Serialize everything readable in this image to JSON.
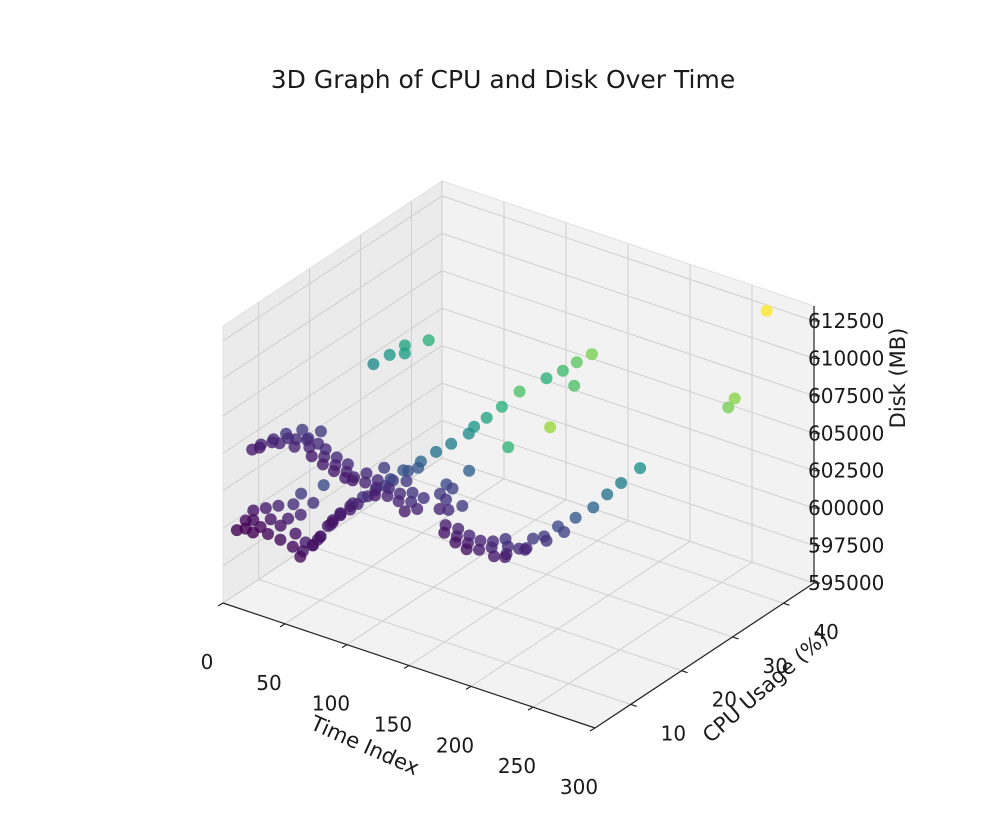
{
  "chart_data": {
    "type": "scatter",
    "projection": "3d",
    "title": "3D Graph of CPU and Disk Over Time",
    "xlabel": "Time Index",
    "ylabel": "CPU Usage (%)",
    "zlabel": "Disk (MB)",
    "xlim": [
      0,
      300
    ],
    "ylim": [
      3,
      46
    ],
    "zlim": [
      595000,
      613500
    ],
    "xticks": [
      0,
      50,
      100,
      150,
      200,
      250,
      300
    ],
    "yticks": [
      10,
      20,
      30,
      40
    ],
    "zticks": [
      595000,
      597500,
      600000,
      602500,
      605000,
      607500,
      610000,
      612500
    ],
    "colormap": "viridis",
    "color_by": "CPU Usage (%)",
    "grid": true,
    "points": [
      [
        3,
        5,
        599500
      ],
      [
        6,
        6,
        600000
      ],
      [
        8,
        7,
        600500
      ],
      [
        10,
        5,
        599800
      ],
      [
        12,
        6,
        600200
      ],
      [
        14,
        8,
        600600
      ],
      [
        16,
        5,
        599700
      ],
      [
        18,
        6,
        599900
      ],
      [
        20,
        9,
        600700
      ],
      [
        22,
        7,
        600300
      ],
      [
        24,
        6,
        599600
      ],
      [
        26,
        12,
        601000
      ],
      [
        28,
        10,
        600800
      ],
      [
        30,
        7,
        600100
      ],
      [
        32,
        8,
        600400
      ],
      [
        34,
        6,
        599500
      ],
      [
        36,
        14,
        601400
      ],
      [
        38,
        9,
        600600
      ],
      [
        40,
        11,
        601000
      ],
      [
        42,
        7,
        599900
      ],
      [
        44,
        6,
        599300
      ],
      [
        46,
        8,
        599200
      ],
      [
        48,
        7,
        598900
      ],
      [
        50,
        6,
        598800
      ],
      [
        52,
        8,
        599200
      ],
      [
        54,
        9,
        599600
      ],
      [
        56,
        7,
        599500
      ],
      [
        58,
        8,
        599900
      ],
      [
        60,
        7,
        600000
      ],
      [
        62,
        9,
        600600
      ],
      [
        64,
        8,
        600800
      ],
      [
        66,
        10,
        601200
      ],
      [
        68,
        8,
        601300
      ],
      [
        70,
        9,
        601600
      ],
      [
        72,
        7,
        601500
      ],
      [
        74,
        8,
        601800
      ],
      [
        76,
        10,
        602200
      ],
      [
        78,
        9,
        602300
      ],
      [
        80,
        11,
        602500
      ],
      [
        82,
        8,
        602400
      ],
      [
        84,
        9,
        602600
      ],
      [
        86,
        12,
        602900
      ],
      [
        88,
        10,
        603000
      ],
      [
        90,
        14,
        603300
      ],
      [
        92,
        16,
        603500
      ],
      [
        94,
        12,
        603400
      ],
      [
        96,
        13,
        603600
      ],
      [
        98,
        18,
        603800
      ],
      [
        100,
        15,
        603900
      ],
      [
        102,
        20,
        604100
      ],
      [
        104,
        16,
        604000
      ],
      [
        106,
        22,
        604300
      ],
      [
        108,
        26,
        604600
      ],
      [
        110,
        28,
        604800
      ],
      [
        112,
        24,
        604700
      ],
      [
        114,
        30,
        605200
      ],
      [
        116,
        33,
        605600
      ],
      [
        3,
        8,
        604200
      ],
      [
        6,
        9,
        604400
      ],
      [
        9,
        8,
        604500
      ],
      [
        12,
        10,
        604700
      ],
      [
        15,
        9,
        604800
      ],
      [
        18,
        11,
        605000
      ],
      [
        21,
        9,
        604900
      ],
      [
        24,
        10,
        605100
      ],
      [
        27,
        12,
        605300
      ],
      [
        30,
        10,
        605200
      ],
      [
        33,
        9,
        605000
      ],
      [
        36,
        11,
        605200
      ],
      [
        39,
        10,
        605400
      ],
      [
        42,
        12,
        605600
      ],
      [
        45,
        9,
        605300
      ],
      [
        48,
        10,
        605400
      ],
      [
        51,
        8,
        605100
      ],
      [
        54,
        10,
        605200
      ],
      [
        57,
        9,
        605000
      ],
      [
        60,
        8,
        604800
      ],
      [
        63,
        10,
        604900
      ],
      [
        66,
        9,
        604700
      ],
      [
        69,
        8,
        604600
      ],
      [
        72,
        10,
        604700
      ],
      [
        75,
        9,
        604500
      ],
      [
        78,
        8,
        604400
      ],
      [
        81,
        9,
        604300
      ],
      [
        84,
        8,
        604400
      ],
      [
        87,
        10,
        604500
      ],
      [
        90,
        9,
        604200
      ],
      [
        93,
        12,
        604600
      ],
      [
        96,
        10,
        604300
      ],
      [
        99,
        9,
        604100
      ],
      [
        102,
        8,
        603900
      ],
      [
        105,
        10,
        604000
      ],
      [
        108,
        9,
        603800
      ],
      [
        111,
        12,
        604200
      ],
      [
        114,
        10,
        603900
      ],
      [
        117,
        9,
        603700
      ],
      [
        120,
        11,
        603900
      ],
      [
        123,
        10,
        603600
      ],
      [
        126,
        8,
        603500
      ],
      [
        129,
        11,
        603800
      ],
      [
        132,
        9,
        603600
      ],
      [
        135,
        14,
        604200
      ],
      [
        138,
        12,
        604100
      ],
      [
        141,
        17,
        604600
      ],
      [
        144,
        13,
        604400
      ],
      [
        147,
        11,
        604200
      ],
      [
        150,
        9,
        604100
      ],
      [
        153,
        10,
        603900
      ],
      [
        156,
        12,
        603800
      ],
      [
        159,
        8,
        603500
      ],
      [
        162,
        7,
        603300
      ],
      [
        165,
        9,
        603200
      ],
      [
        168,
        8,
        603000
      ],
      [
        171,
        7,
        602900
      ],
      [
        174,
        9,
        603000
      ],
      [
        177,
        8,
        602800
      ],
      [
        180,
        7,
        602700
      ],
      [
        183,
        9,
        602900
      ],
      [
        186,
        8,
        602600
      ],
      [
        189,
        10,
        602800
      ],
      [
        192,
        9,
        602700
      ],
      [
        195,
        11,
        602900
      ],
      [
        198,
        8,
        602500
      ],
      [
        201,
        10,
        602800
      ],
      [
        204,
        9,
        602600
      ],
      [
        207,
        8,
        602700
      ],
      [
        210,
        10,
        602900
      ],
      [
        213,
        12,
        603200
      ],
      [
        216,
        10,
        603100
      ],
      [
        219,
        9,
        603300
      ],
      [
        222,
        12,
        603600
      ],
      [
        225,
        14,
        603900
      ],
      [
        228,
        11,
        603700
      ],
      [
        231,
        16,
        604200
      ],
      [
        234,
        13,
        604000
      ],
      [
        237,
        18,
        604600
      ],
      [
        240,
        20,
        605100
      ],
      [
        243,
        22,
        605500
      ],
      [
        246,
        25,
        605900
      ],
      [
        35,
        24,
        607200
      ],
      [
        40,
        26,
        607500
      ],
      [
        44,
        28,
        607800
      ],
      [
        48,
        27,
        607600
      ],
      [
        55,
        30,
        608000
      ],
      [
        150,
        30,
        608100
      ],
      [
        155,
        32,
        608300
      ],
      [
        158,
        34,
        608500
      ],
      [
        162,
        36,
        608700
      ],
      [
        160,
        33,
        607200
      ],
      [
        270,
        44,
        612800
      ],
      [
        272,
        36,
        608200
      ],
      [
        273,
        37,
        608600
      ],
      [
        115,
        31,
        602300
      ],
      [
        120,
        38,
        602200
      ]
    ]
  }
}
